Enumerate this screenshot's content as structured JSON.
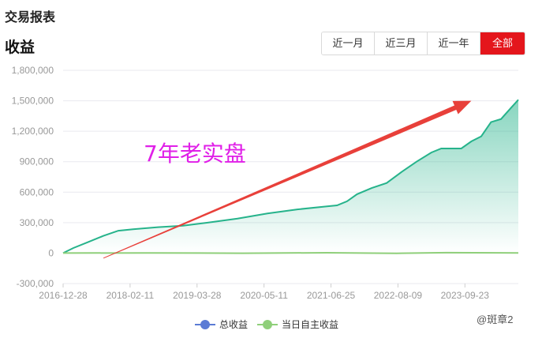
{
  "header": {
    "report_title": "交易报表",
    "chart_title": "收益"
  },
  "range_tabs": [
    {
      "label": "近一月",
      "active": false
    },
    {
      "label": "近三月",
      "active": false
    },
    {
      "label": "近一年",
      "active": false
    },
    {
      "label": "全部",
      "active": true
    }
  ],
  "colors": {
    "accent": "#e4161c",
    "total_line": "#26b38b",
    "daily_line": "#8fcf7a",
    "legend_total_dot": "#5b7bd5",
    "annotation_text": "#e020e8",
    "annotation_arrow": "#e8403a"
  },
  "chart_data": {
    "type": "line",
    "title": "",
    "xlabel": "",
    "ylabel": "",
    "ylim": [
      -300000,
      1800000
    ],
    "yticks": [
      -300000,
      0,
      300000,
      600000,
      900000,
      1200000,
      1500000,
      1800000
    ],
    "ytick_labels": [
      "-300,000",
      "0",
      "300,000",
      "600,000",
      "900,000",
      "1,200,000",
      "1,500,000",
      "1,800,000"
    ],
    "xlim": [
      "2016-12-28",
      "2024-08-15"
    ],
    "xtick_labels": [
      "2016-12-28",
      "2018-02-11",
      "2019-03-28",
      "2020-05-11",
      "2021-06-25",
      "2022-08-09",
      "2023-09-23"
    ],
    "grid": true,
    "legend_position": "bottom",
    "series": [
      {
        "name": "总收益",
        "area_fill": true,
        "points": [
          [
            "2016-12-28",
            0
          ],
          [
            "2017-03-01",
            50000
          ],
          [
            "2017-06-01",
            110000
          ],
          [
            "2017-09-01",
            170000
          ],
          [
            "2017-12-01",
            220000
          ],
          [
            "2018-03-01",
            235000
          ],
          [
            "2018-08-01",
            255000
          ],
          [
            "2019-01-01",
            270000
          ],
          [
            "2019-06-01",
            300000
          ],
          [
            "2019-12-01",
            340000
          ],
          [
            "2020-06-01",
            390000
          ],
          [
            "2020-12-01",
            430000
          ],
          [
            "2021-06-01",
            460000
          ],
          [
            "2021-08-01",
            470000
          ],
          [
            "2021-10-01",
            510000
          ],
          [
            "2021-12-01",
            580000
          ],
          [
            "2022-03-01",
            640000
          ],
          [
            "2022-06-01",
            690000
          ],
          [
            "2022-09-01",
            800000
          ],
          [
            "2022-12-01",
            900000
          ],
          [
            "2023-03-01",
            990000
          ],
          [
            "2023-05-01",
            1030000
          ],
          [
            "2023-09-01",
            1030000
          ],
          [
            "2023-11-01",
            1100000
          ],
          [
            "2024-01-01",
            1150000
          ],
          [
            "2024-03-01",
            1290000
          ],
          [
            "2024-05-01",
            1320000
          ],
          [
            "2024-07-01",
            1430000
          ],
          [
            "2024-08-15",
            1510000
          ]
        ]
      },
      {
        "name": "当日自主收益",
        "area_fill": false,
        "points": [
          [
            "2016-12-28",
            0
          ],
          [
            "2018-06-01",
            2000
          ],
          [
            "2020-01-01",
            -1000
          ],
          [
            "2021-06-01",
            3000
          ],
          [
            "2022-08-01",
            -2000
          ],
          [
            "2023-06-01",
            4000
          ],
          [
            "2024-08-15",
            2000
          ]
        ]
      }
    ],
    "annotations": [
      {
        "type": "text",
        "text": "7年老实盘"
      },
      {
        "type": "arrow",
        "from": [
          "2017-09-01",
          -50000
        ],
        "to": [
          "2023-11-01",
          1500000
        ]
      }
    ]
  },
  "watermark": {
    "text": "@斑章2"
  }
}
